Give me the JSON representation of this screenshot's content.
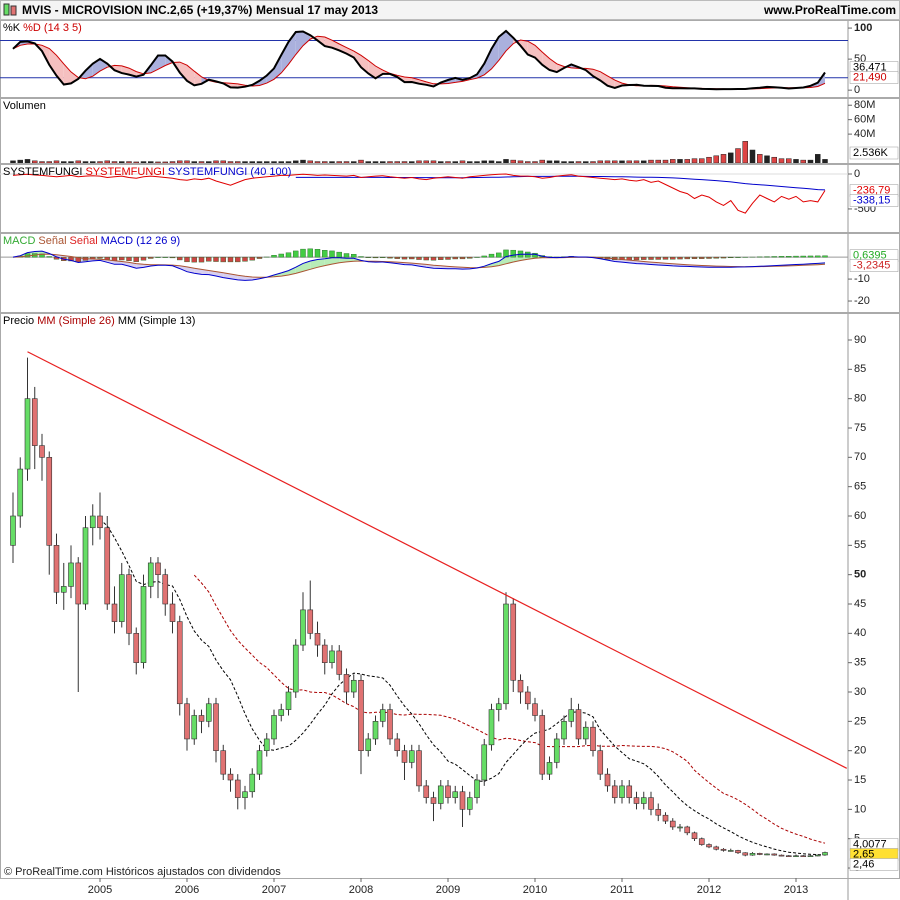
{
  "header": {
    "symbol": "MVIS - MICROVISION INC.",
    "quote": "2,65 (+19,37%)",
    "period": "Mensual  17 may 2013",
    "site": "www.ProRealTime.com"
  },
  "chart_data": [
    {
      "type": "stochastic",
      "title_parts": [
        {
          "text": "%K",
          "color": "#000000"
        },
        {
          "text": "%D (14 3 5)",
          "color": "#cc0000"
        }
      ],
      "ylim": [
        -11,
        113
      ],
      "yticks": [
        0,
        50,
        100
      ],
      "levels": [
        20,
        80
      ],
      "readouts": [
        {
          "label": "36,471",
          "value": 36.471,
          "color": "#000000"
        },
        {
          "label": "21,490",
          "value": 21.49,
          "color": "#cc0000"
        }
      ]
    },
    {
      "type": "bar",
      "title_parts": [
        {
          "text": "Volumen",
          "color": "#000000"
        }
      ],
      "values": [
        3,
        4,
        5,
        3,
        2,
        2,
        3,
        2,
        2,
        3,
        2,
        2,
        2,
        3,
        2,
        2,
        2,
        1.5,
        2,
        2,
        1.5,
        1.5,
        2,
        3,
        3,
        2,
        2,
        2,
        3,
        3,
        2,
        2,
        2,
        2,
        2,
        2,
        2,
        2,
        2,
        3,
        4,
        3,
        2,
        2,
        2,
        2,
        2,
        2,
        4,
        2,
        2,
        2,
        2,
        2,
        2,
        2,
        3,
        3,
        3,
        2,
        2,
        2,
        3,
        2,
        2,
        3,
        3,
        2,
        5,
        4,
        3,
        2,
        2,
        4,
        3,
        3,
        2,
        2,
        2,
        2,
        2,
        3,
        3,
        3,
        3,
        3,
        3,
        3,
        4,
        4,
        4,
        5,
        5,
        5,
        6,
        6,
        8,
        10,
        12,
        14,
        20,
        30,
        18,
        12,
        10,
        8,
        6,
        6,
        5,
        4,
        4,
        12,
        5
      ],
      "ylim": [
        0,
        90
      ],
      "yticks": [
        {
          "value": 40,
          "label": "40M"
        },
        {
          "value": 60,
          "label": "60M"
        },
        {
          "value": 80,
          "label": "80M"
        }
      ],
      "readouts": [
        {
          "label": "2.536K",
          "color": "#000000"
        }
      ]
    },
    {
      "type": "line",
      "title_parts": [
        {
          "text": "SYSTEMFUNGI",
          "color": "#000000"
        },
        {
          "text": "SYSTEMFUNGI",
          "color": "#e00000"
        },
        {
          "text": "SYSTEMFUNGI (40 100)",
          "color": "#0000cc"
        }
      ],
      "values": [
        -20,
        -10,
        -5,
        -15,
        -20,
        -30,
        -40,
        -30,
        -20,
        -40,
        -30,
        -25,
        -30,
        -50,
        -40,
        -30,
        -50,
        -60,
        -40,
        -30,
        -40,
        -50,
        -60,
        -80,
        -90,
        -70,
        -80,
        -60,
        -100,
        -130,
        -160,
        -120,
        -80,
        -60,
        -50,
        -40,
        -30,
        -20,
        -20,
        -10,
        -5,
        -10,
        -20,
        -15,
        -20,
        -25,
        -30,
        -20,
        -50,
        -40,
        -30,
        -25,
        -40,
        -50,
        -60,
        -50,
        -70,
        -80,
        -60,
        -50,
        -40,
        -50,
        -60,
        -40,
        -30,
        -20,
        -10,
        -5,
        0,
        -20,
        -30,
        -30,
        -40,
        -60,
        -50,
        -30,
        -20,
        -10,
        -30,
        -40,
        -50,
        -60,
        -70,
        -80,
        -70,
        -90,
        -100,
        -80,
        -120,
        -100,
        -150,
        -200,
        -250,
        -280,
        -350,
        -300,
        -330,
        -400,
        -450,
        -380,
        -520,
        -560,
        -420,
        -300,
        -350,
        -400,
        -320,
        -360,
        -320,
        -400,
        -380,
        -400,
        -236.79
      ],
      "color": "#e00000",
      "average_color": "#0000cc",
      "ylim": [
        -830,
        143
      ],
      "yticks": [
        -500,
        0
      ],
      "readouts": [
        {
          "label": "-236,79",
          "value": -236.79,
          "color": "#e00000"
        },
        {
          "label": "-338,15",
          "value": -338.15,
          "color": "#0000cc"
        }
      ]
    },
    {
      "type": "macd",
      "title_parts": [
        {
          "text": "MACD",
          "color": "#33aa33"
        },
        {
          "text": "Señal",
          "color": "#aa5533"
        },
        {
          "text": "Señal",
          "color": "#dd2222"
        },
        {
          "text": "MACD (12 26 9)",
          "color": "#0000cc"
        }
      ],
      "ylim": [
        -25,
        11
      ],
      "yticks": [
        -20,
        -10
      ],
      "readouts": [
        {
          "label": "0,6395",
          "value": 0.6395,
          "color": "#22aa22"
        },
        {
          "label": "-3,2345",
          "value": -3.2345,
          "color": "#cc2222"
        }
      ]
    },
    {
      "type": "candlestick",
      "title_parts": [
        {
          "text": "Precio",
          "color": "#000000"
        },
        {
          "text": "MM (Simple 26)",
          "color": "#aa0000"
        },
        {
          "text": "MM (Simple 13)",
          "color": "#000000"
        }
      ],
      "categories": [
        null,
        null,
        null,
        null,
        null,
        null,
        null,
        null,
        null,
        null,
        null,
        null,
        "2005",
        null,
        null,
        null,
        null,
        null,
        null,
        null,
        null,
        null,
        null,
        null,
        "2006",
        null,
        null,
        null,
        null,
        null,
        null,
        null,
        null,
        null,
        null,
        null,
        "2007",
        null,
        null,
        null,
        null,
        null,
        null,
        null,
        null,
        null,
        null,
        null,
        "2008",
        null,
        null,
        null,
        null,
        null,
        null,
        null,
        null,
        null,
        null,
        null,
        "2009",
        null,
        null,
        null,
        null,
        null,
        null,
        null,
        null,
        null,
        null,
        null,
        "2010",
        null,
        null,
        null,
        null,
        null,
        null,
        null,
        null,
        null,
        null,
        null,
        "2011",
        null,
        null,
        null,
        null,
        null,
        null,
        null,
        null,
        null,
        null,
        null,
        "2012",
        null,
        null,
        null,
        null,
        null,
        null,
        null,
        null,
        null,
        null,
        null,
        "2013",
        null,
        null,
        null,
        null
      ],
      "ohlc": [
        [
          55,
          64,
          52,
          60
        ],
        [
          60,
          70,
          58,
          68
        ],
        [
          68,
          87,
          66,
          80
        ],
        [
          80,
          82,
          68,
          72
        ],
        [
          72,
          74,
          66,
          70
        ],
        [
          70,
          71,
          50,
          55
        ],
        [
          55,
          57,
          45,
          47
        ],
        [
          47,
          52,
          44,
          48
        ],
        [
          48,
          55,
          46,
          52
        ],
        [
          52,
          53,
          30,
          45
        ],
        [
          45,
          60,
          44,
          58
        ],
        [
          58,
          62,
          55,
          60
        ],
        [
          60,
          64,
          56,
          58
        ],
        [
          58,
          60,
          44,
          45
        ],
        [
          45,
          48,
          40,
          42
        ],
        [
          42,
          52,
          41,
          50
        ],
        [
          50,
          51,
          38,
          40
        ],
        [
          40,
          41,
          33,
          35
        ],
        [
          35,
          50,
          34,
          48
        ],
        [
          48,
          53,
          46,
          52
        ],
        [
          52,
          53,
          46,
          50
        ],
        [
          50,
          51,
          43,
          45
        ],
        [
          45,
          47,
          40,
          42
        ],
        [
          42,
          43,
          26,
          28
        ],
        [
          28,
          29,
          20,
          22
        ],
        [
          22,
          27,
          21,
          26
        ],
        [
          26,
          27,
          23,
          25
        ],
        [
          25,
          29,
          24,
          28
        ],
        [
          28,
          29,
          18,
          20
        ],
        [
          20,
          21,
          15,
          16
        ],
        [
          16,
          17,
          13,
          15
        ],
        [
          15,
          16,
          10,
          12
        ],
        [
          12,
          14,
          10,
          13
        ],
        [
          13,
          17,
          12,
          16
        ],
        [
          16,
          21,
          15,
          20
        ],
        [
          20,
          23,
          19,
          22
        ],
        [
          22,
          27,
          21,
          26
        ],
        [
          26,
          28,
          25,
          27
        ],
        [
          27,
          31,
          26,
          30
        ],
        [
          30,
          39,
          29,
          38
        ],
        [
          38,
          47,
          37,
          44
        ],
        [
          44,
          49,
          39,
          40
        ],
        [
          40,
          42,
          36,
          38
        ],
        [
          38,
          39,
          33,
          35
        ],
        [
          35,
          38,
          34,
          37
        ],
        [
          37,
          38,
          32,
          33
        ],
        [
          33,
          34,
          28,
          30
        ],
        [
          30,
          33,
          29,
          32
        ],
        [
          32,
          33,
          16,
          20
        ],
        [
          20,
          23,
          19,
          22
        ],
        [
          22,
          26,
          21,
          25
        ],
        [
          25,
          28,
          24,
          27
        ],
        [
          27,
          28,
          21,
          22
        ],
        [
          22,
          23,
          19,
          20
        ],
        [
          20,
          21,
          15,
          18
        ],
        [
          18,
          21,
          17,
          20
        ],
        [
          20,
          21,
          13,
          14
        ],
        [
          14,
          15,
          11,
          12
        ],
        [
          12,
          13,
          8,
          11
        ],
        [
          11,
          15,
          10,
          14
        ],
        [
          14,
          15,
          11,
          12
        ],
        [
          12,
          14,
          11,
          13
        ],
        [
          13,
          14,
          7,
          10
        ],
        [
          10,
          13,
          9,
          12
        ],
        [
          12,
          16,
          11,
          15
        ],
        [
          15,
          22,
          14,
          21
        ],
        [
          21,
          28,
          20,
          27
        ],
        [
          27,
          29,
          25,
          28
        ],
        [
          28,
          47,
          27,
          45
        ],
        [
          45,
          46,
          30,
          32
        ],
        [
          32,
          33,
          28,
          30
        ],
        [
          30,
          31,
          27,
          28
        ],
        [
          28,
          29,
          25,
          26
        ],
        [
          26,
          27,
          15,
          16
        ],
        [
          16,
          19,
          15,
          18
        ],
        [
          18,
          23,
          17,
          22
        ],
        [
          22,
          26,
          21,
          25
        ],
        [
          25,
          29,
          24,
          27
        ],
        [
          27,
          28,
          21,
          22
        ],
        [
          22,
          25,
          21,
          24
        ],
        [
          24,
          25,
          19,
          20
        ],
        [
          20,
          21,
          15,
          16
        ],
        [
          16,
          17,
          13,
          14
        ],
        [
          14,
          15,
          11,
          12
        ],
        [
          12,
          15,
          11,
          14
        ],
        [
          14,
          15,
          11,
          12
        ],
        [
          12,
          13,
          10,
          11
        ],
        [
          11,
          13,
          10,
          12
        ],
        [
          12,
          13,
          9,
          10
        ],
        [
          10,
          11,
          8,
          9
        ],
        [
          9,
          9.5,
          7.5,
          8
        ],
        [
          8,
          8.5,
          6.5,
          7
        ],
        [
          7,
          7.5,
          6.2,
          7
        ],
        [
          7,
          7.2,
          5.6,
          6
        ],
        [
          6,
          6.2,
          4.6,
          5
        ],
        [
          5,
          5.2,
          3.8,
          4
        ],
        [
          4,
          4.2,
          3.4,
          3.6
        ],
        [
          3.6,
          3.8,
          3,
          3.2
        ],
        [
          3.2,
          3.4,
          2.8,
          3
        ],
        [
          3,
          3.3,
          2.8,
          3
        ],
        [
          3,
          3.1,
          2.4,
          2.6
        ],
        [
          2.6,
          2.7,
          2,
          2.2
        ],
        [
          2.2,
          2.7,
          2.1,
          2.5
        ],
        [
          2.5,
          2.6,
          2.2,
          2.3
        ],
        [
          2.3,
          2.5,
          2.2,
          2.4
        ],
        [
          2.4,
          2.5,
          2.1,
          2.2
        ],
        [
          2.2,
          2.3,
          2,
          2.1
        ],
        [
          2.1,
          2.2,
          1.9,
          2
        ],
        [
          2,
          2.3,
          1.9,
          2.1
        ],
        [
          2.1,
          2.2,
          1.9,
          2
        ],
        [
          2,
          2.2,
          1.9,
          2.1
        ],
        [
          2.1,
          2.3,
          2,
          2.22
        ],
        [
          2.22,
          2.8,
          2.1,
          2.65
        ]
      ],
      "up_color": "#66dd66",
      "down_color": "#e07272",
      "trendline": {
        "x": [
          2,
          115
        ],
        "y": [
          88,
          17
        ],
        "color": "#e82020"
      },
      "ylim": [
        -1.7,
        94.6
      ],
      "yticks": [
        0,
        5,
        10,
        15,
        20,
        25,
        30,
        35,
        40,
        45,
        50,
        55,
        60,
        65,
        70,
        75,
        80,
        85,
        90
      ],
      "readouts": [
        {
          "label": "4,0077",
          "value": 4.0077,
          "color": "#000000"
        },
        {
          "label": "2,65",
          "value": 2.65,
          "color": "#000000",
          "background": "#ffe033"
        },
        {
          "label": "2,46",
          "value": 2.46,
          "color": "#000000"
        }
      ],
      "footer": "© ProRealTime.com  Históricos ajustados con dividendos"
    }
  ]
}
